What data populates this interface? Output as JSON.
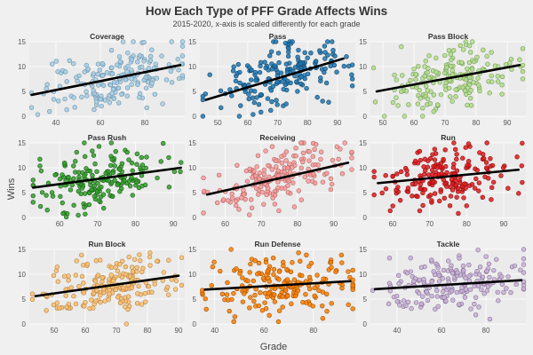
{
  "title": "How Each Type of PFF Grade Affects Wins",
  "subtitle": "2015-2020, x-axis is scaled differently for each grade",
  "xlabel": "Grade",
  "ylabel": "Wins",
  "chart_data": [
    {
      "type": "scatter",
      "title": "Coverage",
      "color": "#a6cee3",
      "stroke": "#6f93ab",
      "xlim": [
        28,
        98
      ],
      "xticks": [
        40,
        60,
        80
      ],
      "ylim": [
        0,
        15
      ],
      "yticks": [
        0,
        5,
        10,
        15
      ],
      "x_center": 65,
      "x_spread": 16,
      "line": {
        "x": [
          29,
          96
        ],
        "y": [
          4.3,
          10.3
        ]
      },
      "n": 190
    },
    {
      "type": "scatter",
      "title": "Pass",
      "color": "#1f78b4",
      "stroke": "#12476b",
      "xlim": [
        44,
        96
      ],
      "xticks": [
        50,
        60,
        70,
        80,
        90
      ],
      "ylim": [
        0,
        15
      ],
      "yticks": [
        0,
        5,
        10,
        15
      ],
      "x_center": 70,
      "x_spread": 11,
      "line": {
        "x": [
          46,
          92
        ],
        "y": [
          3.3,
          11.6
        ]
      },
      "n": 190
    },
    {
      "type": "scatter",
      "title": "Pass Block",
      "color": "#b2df8a",
      "stroke": "#789a5c",
      "xlim": [
        46,
        96
      ],
      "xticks": [
        50,
        60,
        70,
        80,
        90
      ],
      "ylim": [
        0,
        15
      ],
      "yticks": [
        0,
        5,
        10,
        15
      ],
      "x_center": 72,
      "x_spread": 10,
      "line": {
        "x": [
          48,
          94
        ],
        "y": [
          5.0,
          10.3
        ]
      },
      "n": 190
    },
    {
      "type": "scatter",
      "title": "Pass Rush",
      "color": "#33a02c",
      "stroke": "#1d5e19",
      "xlim": [
        52,
        93
      ],
      "xticks": [
        60,
        70,
        80,
        90
      ],
      "ylim": [
        0,
        15
      ],
      "yticks": [
        0,
        5,
        10,
        15
      ],
      "x_center": 70,
      "x_spread": 9,
      "line": {
        "x": [
          53,
          92
        ],
        "y": [
          6.0,
          10.0
        ]
      },
      "n": 190
    },
    {
      "type": "scatter",
      "title": "Receiving",
      "color": "#fb9a99",
      "stroke": "#b06766",
      "xlim": [
        53,
        96
      ],
      "xticks": [
        60,
        70,
        80,
        90
      ],
      "ylim": [
        0,
        15
      ],
      "yticks": [
        0,
        5,
        10,
        15
      ],
      "x_center": 74,
      "x_spread": 9,
      "line": {
        "x": [
          55,
          94
        ],
        "y": [
          4.6,
          11.0
        ]
      },
      "n": 190
    },
    {
      "type": "scatter",
      "title": "Run",
      "color": "#e31a1c",
      "stroke": "#8c1012",
      "xlim": [
        54,
        96
      ],
      "xticks": [
        60,
        70,
        80,
        90
      ],
      "ylim": [
        0,
        15
      ],
      "yticks": [
        0,
        5,
        10,
        15
      ],
      "x_center": 74,
      "x_spread": 9,
      "line": {
        "x": [
          56,
          94
        ],
        "y": [
          6.9,
          9.6
        ]
      },
      "n": 190
    },
    {
      "type": "scatter",
      "title": "Run Block",
      "color": "#fdbf6f",
      "stroke": "#b48546",
      "xlim": [
        42,
        92
      ],
      "xticks": [
        50,
        60,
        70,
        80,
        90
      ],
      "ylim": [
        0,
        15
      ],
      "yticks": [
        0,
        5,
        10,
        15
      ],
      "x_center": 68,
      "x_spread": 11,
      "line": {
        "x": [
          44,
          90
        ],
        "y": [
          5.6,
          9.7
        ]
      },
      "n": 190
    },
    {
      "type": "scatter",
      "title": "Run Defense",
      "color": "#ff7f00",
      "stroke": "#a45300",
      "xlim": [
        34,
        97
      ],
      "xticks": [
        40,
        60,
        80
      ],
      "ylim": [
        0,
        15
      ],
      "yticks": [
        0,
        5,
        10,
        15
      ],
      "x_center": 68,
      "x_spread": 14,
      "line": {
        "x": [
          36,
          95
        ],
        "y": [
          6.9,
          8.6
        ]
      },
      "n": 190
    },
    {
      "type": "scatter",
      "title": "Tackle",
      "color": "#cab2d6",
      "stroke": "#86739a",
      "xlim": [
        28,
        98
      ],
      "xticks": [
        40,
        60,
        80
      ],
      "ylim": [
        0,
        15
      ],
      "yticks": [
        0,
        5,
        10,
        15
      ],
      "x_center": 65,
      "x_spread": 16,
      "line": {
        "x": [
          30,
          96
        ],
        "y": [
          7.0,
          8.8
        ]
      },
      "n": 190
    }
  ]
}
